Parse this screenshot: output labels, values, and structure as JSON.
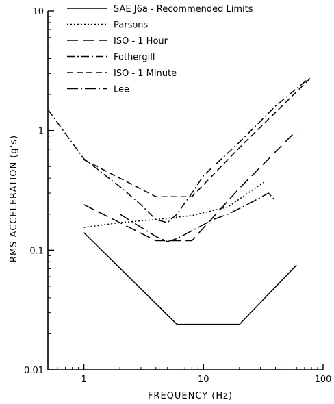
{
  "chart_data": {
    "type": "line",
    "title": "",
    "xlabel": "FREQUENCY (Hz)",
    "ylabel": "RMS ACCELERATION (g's)",
    "xscale": "log",
    "yscale": "log",
    "xlim": [
      0.5,
      100
    ],
    "ylim": [
      0.01,
      10
    ],
    "x_ticks": [
      1,
      10,
      100
    ],
    "x_tick_labels": [
      "1",
      "10",
      "100"
    ],
    "y_ticks": [
      0.01,
      0.1,
      1,
      10
    ],
    "y_tick_labels": [
      "0.01",
      "0.1",
      "1",
      "10"
    ],
    "grid": false,
    "legend_position": "top",
    "series": [
      {
        "name": "SAE J6a - Recommended Limits",
        "dash": "solid",
        "x": [
          1,
          6,
          20,
          60
        ],
        "y": [
          0.14,
          0.024,
          0.024,
          0.075
        ]
      },
      {
        "name": "Parsons",
        "dash": "dotted",
        "x": [
          1,
          2,
          4,
          8,
          16,
          32
        ],
        "y": [
          0.155,
          0.17,
          0.18,
          0.195,
          0.23,
          0.37
        ]
      },
      {
        "name": "ISO - 1 Hour",
        "dash": "longdash",
        "x": [
          1,
          4,
          8,
          20,
          60
        ],
        "y": [
          0.24,
          0.12,
          0.12,
          0.33,
          1.0
        ]
      },
      {
        "name": "Fothergill",
        "dash": "dashdot",
        "x": [
          0.5,
          1,
          2,
          3,
          4,
          5,
          6,
          8,
          10,
          20,
          40,
          75
        ],
        "y": [
          1.5,
          0.58,
          0.34,
          0.24,
          0.18,
          0.17,
          0.2,
          0.3,
          0.42,
          0.8,
          1.6,
          2.7
        ]
      },
      {
        "name": "ISO - 1 Minute",
        "dash": "dashed",
        "x": [
          1,
          4,
          8,
          20,
          80
        ],
        "y": [
          0.57,
          0.28,
          0.28,
          0.72,
          2.8
        ]
      },
      {
        "name": "Lee",
        "dash": "dashdotlong",
        "x": [
          2,
          4,
          5,
          6,
          8,
          12,
          16,
          25,
          35,
          40
        ],
        "y": [
          0.2,
          0.13,
          0.118,
          0.125,
          0.145,
          0.18,
          0.2,
          0.25,
          0.3,
          0.26
        ]
      }
    ]
  }
}
